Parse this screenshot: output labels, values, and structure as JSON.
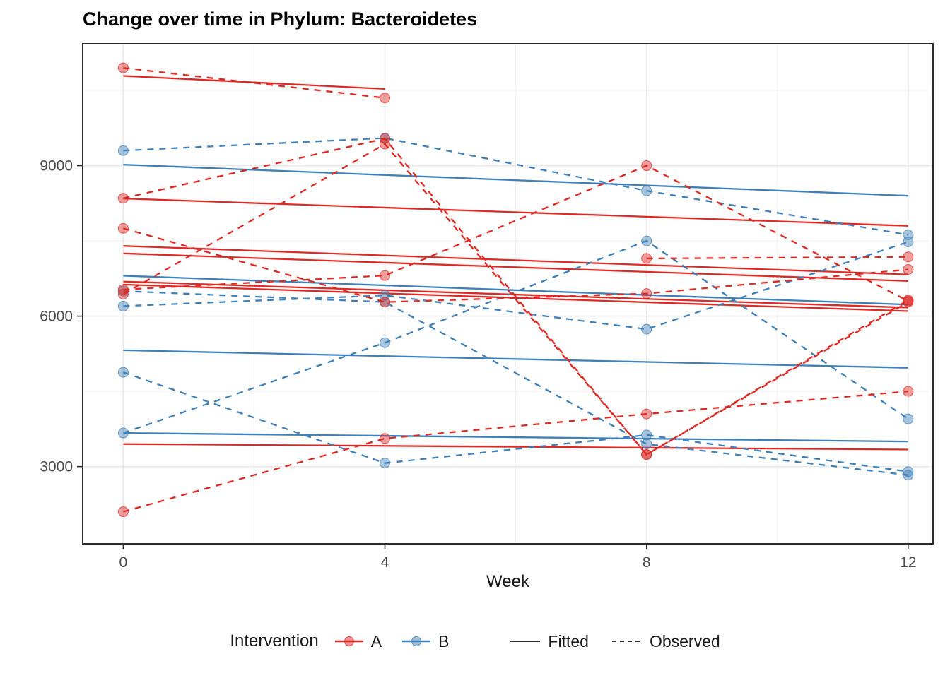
{
  "chart_data": {
    "type": "line",
    "title": "Change over time in Phylum: Bacteroidetes",
    "xlabel": "Week",
    "x_ticks": [
      0,
      4,
      8,
      12
    ],
    "y_ticks": [
      3000,
      6000,
      9000
    ],
    "x_minor": [
      2,
      6,
      10
    ],
    "y_minor": [
      4500,
      7500,
      10500
    ],
    "xlim": [
      -0.62,
      12.38
    ],
    "ylim": [
      1460,
      11430
    ],
    "grid": "on",
    "legend_position": "bottom",
    "colors": {
      "A": "#DD2A25",
      "B": "#4080B8"
    },
    "panel_border_color": "#2e2e2e",
    "grid_major_color": "#e9e9e9",
    "grid_minor_color": "#f1f1f1",
    "tick_label_color": "#4d4d4d",
    "legend": {
      "title": "Intervention",
      "items": [
        {
          "label": "A"
        },
        {
          "label": "B"
        }
      ],
      "linetypes": [
        {
          "label": "Fitted"
        },
        {
          "label": "Observed"
        }
      ]
    },
    "fitted_series": [
      {
        "group": "A",
        "weeks": [
          0,
          4
        ],
        "values": [
          10790,
          10530
        ]
      },
      {
        "group": "A",
        "weeks": [
          0,
          12
        ],
        "values": [
          8345,
          7800
        ]
      },
      {
        "group": "A",
        "weeks": [
          0,
          12
        ],
        "values": [
          7400,
          6830
        ]
      },
      {
        "group": "A",
        "weeks": [
          0,
          12
        ],
        "values": [
          7250,
          6700
        ]
      },
      {
        "group": "A",
        "weeks": [
          0,
          12
        ],
        "values": [
          6690,
          6170
        ]
      },
      {
        "group": "A",
        "weeks": [
          0,
          12
        ],
        "values": [
          6630,
          6100
        ]
      },
      {
        "group": "A",
        "weeks": [
          0,
          12
        ],
        "values": [
          3450,
          3340
        ]
      },
      {
        "group": "B",
        "weeks": [
          0,
          12
        ],
        "values": [
          9020,
          8400
        ]
      },
      {
        "group": "B",
        "weeks": [
          0,
          12
        ],
        "values": [
          6805,
          6230
        ]
      },
      {
        "group": "B",
        "weeks": [
          0,
          12
        ],
        "values": [
          5320,
          4970
        ]
      },
      {
        "group": "B",
        "weeks": [
          0,
          12
        ],
        "values": [
          3670,
          3500
        ]
      }
    ],
    "observed_series": [
      {
        "group": "A",
        "weeks": [
          0,
          4
        ],
        "values": [
          10950,
          10350
        ]
      },
      {
        "group": "A",
        "weeks": [
          0,
          4,
          8,
          12
        ],
        "values": [
          8350,
          9540,
          3240,
          6320
        ]
      },
      {
        "group": "A",
        "weeks": [
          0,
          4,
          8,
          12
        ],
        "values": [
          6440,
          9430,
          3240,
          6280
        ]
      },
      {
        "group": "A",
        "weeks": [
          0,
          4,
          8,
          12
        ],
        "values": [
          7750,
          6280,
          6450,
          6930
        ]
      },
      {
        "group": "A",
        "weeks": [
          0,
          4,
          8,
          12
        ],
        "values": [
          6530,
          6810,
          9000,
          6300
        ]
      },
      {
        "group": "A",
        "weeks": [
          0,
          4,
          8,
          12
        ],
        "values": [
          2100,
          3560,
          4050,
          4500
        ]
      },
      {
        "group": "A",
        "weeks": [
          8,
          12
        ],
        "values": [
          7150,
          7180
        ]
      },
      {
        "group": "B",
        "weeks": [
          0,
          4,
          8,
          12
        ],
        "values": [
          9300,
          9550,
          8500,
          7620
        ]
      },
      {
        "group": "B",
        "weeks": [
          0,
          4,
          8,
          12
        ],
        "values": [
          6500,
          6280,
          3450,
          2830
        ]
      },
      {
        "group": "B",
        "weeks": [
          0,
          4,
          8,
          12
        ],
        "values": [
          6200,
          6415,
          5740,
          7480
        ]
      },
      {
        "group": "B",
        "weeks": [
          0,
          4,
          8,
          12
        ],
        "values": [
          4880,
          3070,
          3630,
          2900
        ]
      },
      {
        "group": "B",
        "weeks": [
          0,
          4,
          8,
          12
        ],
        "values": [
          3670,
          5470,
          7500,
          3950
        ]
      }
    ]
  }
}
